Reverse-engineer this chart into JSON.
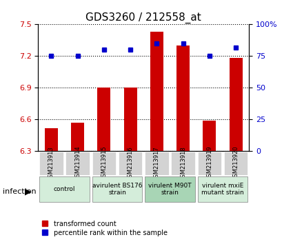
{
  "title": "GDS3260 / 212558_at",
  "samples": [
    "GSM213913",
    "GSM213914",
    "GSM213915",
    "GSM213916",
    "GSM213917",
    "GSM213918",
    "GSM213919",
    "GSM213920"
  ],
  "bar_values": [
    6.52,
    6.57,
    6.9,
    6.9,
    7.43,
    7.3,
    6.59,
    7.18
  ],
  "dot_values": [
    75,
    75,
    80,
    80,
    85,
    85,
    75,
    82
  ],
  "ylim_left": [
    6.3,
    7.5
  ],
  "ylim_right": [
    0,
    100
  ],
  "yticks_left": [
    6.3,
    6.6,
    6.9,
    7.2,
    7.5
  ],
  "yticks_right": [
    0,
    25,
    50,
    75,
    100
  ],
  "bar_color": "#cc0000",
  "dot_color": "#0000cc",
  "grid_color": "#000000",
  "bg_color": "#ffffff",
  "plot_bg": "#ffffff",
  "groups": [
    {
      "label": "control",
      "start": 0,
      "end": 2,
      "bg": "#c8e6c9"
    },
    {
      "label": "avirulent BS176\nstrain",
      "start": 2,
      "end": 4,
      "bg": "#c8e6c9"
    },
    {
      "label": "virulent M90T\nstrain",
      "start": 4,
      "end": 6,
      "bg": "#a5d6a7"
    },
    {
      "label": "virulent mxiE\nmutant strain",
      "start": 6,
      "end": 8,
      "bg": "#c8e6c9"
    }
  ],
  "legend_labels": [
    "transformed count",
    "percentile rank within the sample"
  ],
  "xlabel_annotation": "infection",
  "title_fontsize": 11,
  "tick_fontsize": 8,
  "label_fontsize": 8
}
